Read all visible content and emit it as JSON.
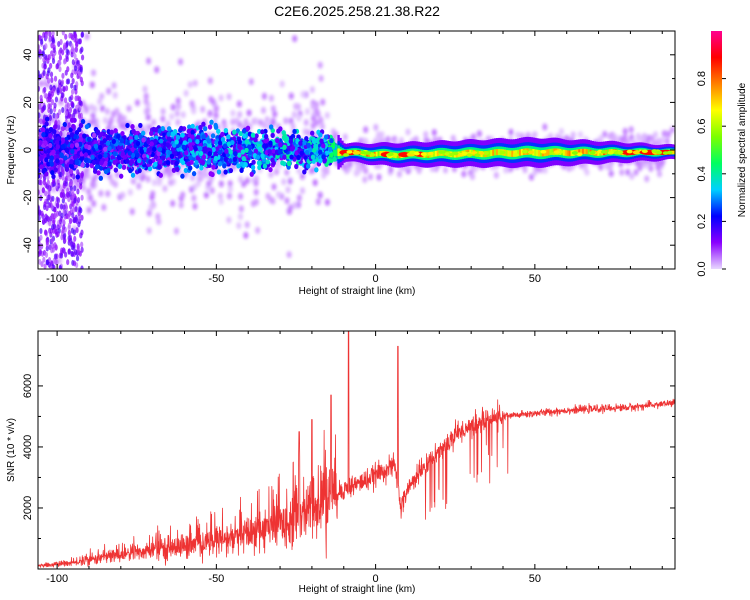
{
  "title": "C2E6.2025.258.21.38.R22",
  "chart_data": [
    {
      "type": "heatmap",
      "xlabel": "Height of straight line (km)",
      "ylabel": "Frequency (Hz)",
      "xlim": [
        -106,
        94
      ],
      "ylim": [
        -50,
        50
      ],
      "xticks": [
        -100,
        -50,
        0,
        50
      ],
      "xtick_labels": [
        "-100",
        "-50",
        "0",
        "50"
      ],
      "yticks": [
        -40,
        -20,
        0,
        20,
        40
      ],
      "ytick_labels": [
        "-40",
        "-20",
        "0",
        "20",
        "40"
      ],
      "colorbar": {
        "label": "Normalized spectral amplitude",
        "range": [
          0,
          1
        ],
        "ticks": [
          0.0,
          0.2,
          0.4,
          0.6,
          0.8
        ],
        "tick_labels": [
          "0.0",
          "0.2",
          "0.4",
          "0.6",
          "0.8"
        ],
        "colors": [
          "#e8d8ff",
          "#8a00ff",
          "#0000ff",
          "#00d0ff",
          "#00ff60",
          "#7cff00",
          "#ffff00",
          "#ff8000",
          "#ff0000",
          "#ff0090"
        ]
      },
      "band_profile": [
        {
          "x": -106,
          "center": 0,
          "width": 8,
          "amplitude": 0.2
        },
        {
          "x": -50,
          "center": 0,
          "width": 7,
          "amplitude": 0.3
        },
        {
          "x": -15,
          "center": 0,
          "width": 5,
          "amplitude": 0.35
        },
        {
          "x": -10,
          "center": -1,
          "width": 1.5,
          "amplitude": 0.9
        },
        {
          "x": 5,
          "center": -2,
          "width": 2,
          "amplitude": 0.6
        },
        {
          "x": 50,
          "center": -1,
          "width": 2.5,
          "amplitude": 0.5
        },
        {
          "x": 94,
          "center": -1,
          "width": 1.2,
          "amplitude": 0.9
        }
      ]
    },
    {
      "type": "line",
      "xlabel": "Height of straight line (km)",
      "ylabel": "SNR (10 * v/v)",
      "xlim": [
        -106,
        94
      ],
      "ylim": [
        0,
        7800
      ],
      "xticks": [
        -100,
        -50,
        0,
        50
      ],
      "xtick_labels": [
        "-100",
        "-50",
        "0",
        "50"
      ],
      "yticks": [
        2000,
        4000,
        6000
      ],
      "ytick_labels": [
        "2000",
        "4000",
        "6000"
      ],
      "color": "#ee3333",
      "series": [
        {
          "name": "SNR",
          "x": [
            -106,
            -95,
            -85,
            -75,
            -65,
            -55,
            -45,
            -35,
            -25,
            -18,
            -12,
            -8,
            -3,
            2,
            6,
            8,
            10,
            15,
            20,
            25,
            30,
            35,
            40,
            50,
            60,
            70,
            80,
            94
          ],
          "y": [
            100,
            200,
            400,
            550,
            700,
            800,
            1000,
            1300,
            1700,
            2100,
            2500,
            2700,
            2900,
            3200,
            3400,
            2000,
            2600,
            3300,
            3900,
            4400,
            4700,
            4900,
            5000,
            5100,
            5200,
            5250,
            5300,
            5450
          ],
          "peaks": [
            {
              "x": -8.5,
              "y": 7800
            },
            {
              "x": 7,
              "y": 7300
            },
            {
              "x": -14,
              "y": 5700
            },
            {
              "x": -20,
              "y": 4900
            },
            {
              "x": -24,
              "y": 4500
            }
          ]
        }
      ]
    }
  ]
}
